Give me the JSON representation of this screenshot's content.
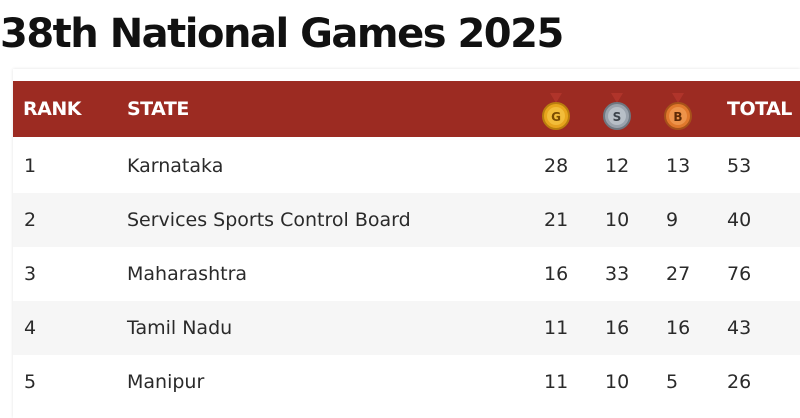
{
  "title": "38th National Games 2025",
  "table": {
    "headers": {
      "rank": "RANK",
      "state": "STATE",
      "total": "TOTAL"
    },
    "medals": [
      {
        "icon": "gold-medal-icon",
        "letter": "G",
        "color": "#e7a51d"
      },
      {
        "icon": "silver-medal-icon",
        "letter": "S",
        "color": "#9aa2ac"
      },
      {
        "icon": "bronze-medal-icon",
        "letter": "B",
        "color": "#e0782c"
      }
    ],
    "rows": [
      {
        "rank": "1",
        "state": "Karnataka",
        "gold": "28",
        "silver": "12",
        "bronze": "13",
        "total": "53"
      },
      {
        "rank": "2",
        "state": "Services Sports Control Board",
        "gold": "21",
        "silver": "10",
        "bronze": "9",
        "total": "40"
      },
      {
        "rank": "3",
        "state": "Maharashtra",
        "gold": "16",
        "silver": "33",
        "bronze": "27",
        "total": "76"
      },
      {
        "rank": "4",
        "state": "Tamil Nadu",
        "gold": "11",
        "silver": "16",
        "bronze": "16",
        "total": "43"
      },
      {
        "rank": "5",
        "state": "Manipur",
        "gold": "11",
        "silver": "10",
        "bronze": "5",
        "total": "26"
      }
    ]
  },
  "colors": {
    "header_bg": "#9c2b22",
    "ribbon": "#b0342a"
  }
}
